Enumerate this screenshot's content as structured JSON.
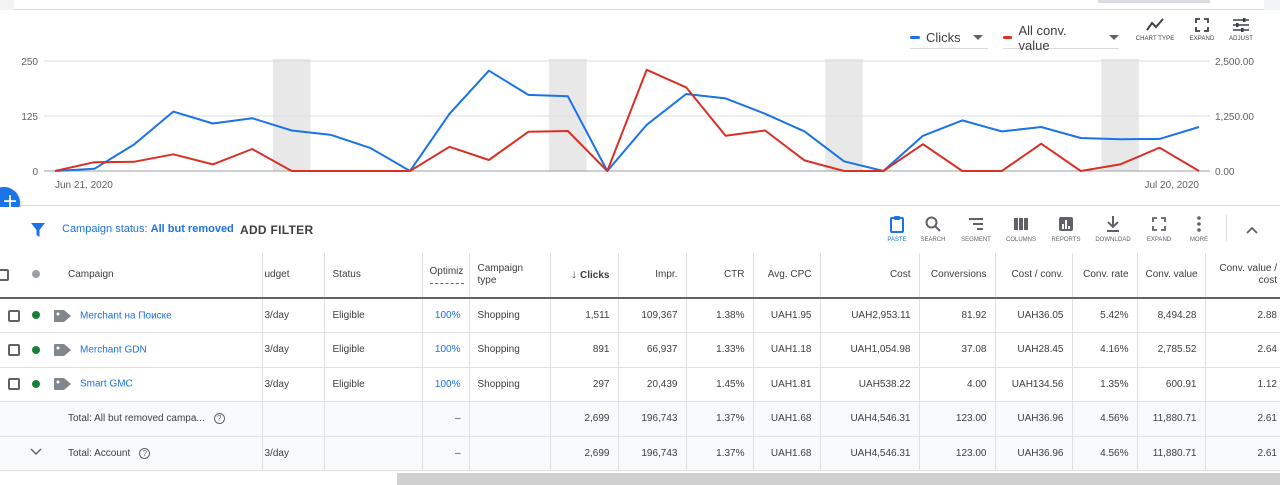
{
  "chart": {
    "metrics": [
      {
        "label": "Clicks",
        "color": "#1a73e8"
      },
      {
        "label": "All conv. value",
        "color": "#d93025"
      }
    ],
    "tools": [
      {
        "label": "CHART TYPE",
        "icon": "line-chart-icon"
      },
      {
        "label": "EXPAND",
        "icon": "expand-icon"
      },
      {
        "label": "ADJUST",
        "icon": "adjust-icon"
      }
    ],
    "left_ticks": [
      "250",
      "125",
      "0"
    ],
    "right_ticks": [
      "2,500.00",
      "1,250.00",
      "0.00"
    ],
    "date_start": "Jun 21, 2020",
    "date_end": "Jul 20, 2020"
  },
  "chart_data": {
    "type": "line",
    "x": [
      "Jun 21, 2020",
      "Jun 22",
      "Jun 23",
      "Jun 24",
      "Jun 25",
      "Jun 26",
      "Jun 27",
      "Jun 28",
      "Jun 29",
      "Jun 30",
      "Jul 1",
      "Jul 2",
      "Jul 3",
      "Jul 4",
      "Jul 5",
      "Jul 6",
      "Jul 7",
      "Jul 8",
      "Jul 9",
      "Jul 10",
      "Jul 11",
      "Jul 12",
      "Jul 13",
      "Jul 14",
      "Jul 15",
      "Jul 16",
      "Jul 17",
      "Jul 18",
      "Jul 19",
      "Jul 20, 2020"
    ],
    "series": [
      {
        "name": "Clicks",
        "axis": "left",
        "values": [
          0,
          5,
          60,
          135,
          108,
          120,
          92,
          82,
          52,
          0,
          130,
          228,
          173,
          170,
          0,
          105,
          175,
          165,
          130,
          90,
          22,
          0,
          80,
          115,
          90,
          100,
          75,
          72,
          73,
          100
        ]
      },
      {
        "name": "All conv. value",
        "axis": "right",
        "values": [
          0,
          200,
          210,
          380,
          150,
          500,
          0,
          0,
          0,
          0,
          550,
          250,
          890,
          910,
          0,
          2300,
          1900,
          800,
          920,
          240,
          0,
          0,
          610,
          0,
          0,
          620,
          0,
          150,
          530,
          0
        ]
      }
    ],
    "ylim_left": [
      0,
      250
    ],
    "ylim_right": [
      0,
      2500
    ],
    "weekend_shaded_indices": [
      6,
      13,
      20,
      27
    ]
  },
  "filter": {
    "prefix": "Campaign status: ",
    "value": "All but removed",
    "add_filter": "ADD FILTER"
  },
  "table_tools": [
    {
      "label": "PASTE",
      "icon": "paste-icon",
      "active": true
    },
    {
      "label": "SEARCH",
      "icon": "search-icon"
    },
    {
      "label": "SEGMENT",
      "icon": "segment-icon"
    },
    {
      "label": "COLUMNS",
      "icon": "columns-icon"
    },
    {
      "label": "REPORTS",
      "icon": "reports-icon"
    },
    {
      "label": "DOWNLOAD",
      "icon": "download-icon"
    },
    {
      "label": "EXPAND",
      "icon": "expand-icon"
    },
    {
      "label": "MORE",
      "icon": "more-icon"
    }
  ],
  "table": {
    "headers": {
      "campaign": "Campaign",
      "budget": "udget",
      "status": "Status",
      "optim": "Optimiz",
      "type": "Campaign type",
      "clicks": "Clicks",
      "impr": "Impr.",
      "ctr": "CTR",
      "avg_cpc": "Avg. CPC",
      "cost": "Cost",
      "conversions": "Conversions",
      "cost_conv": "Cost / conv.",
      "conv_rate": "Conv. rate",
      "conv_value": "Conv. value",
      "conv_value_cost": "Conv. value / cost"
    },
    "rows": [
      {
        "campaign": "Merchant на Поиске",
        "budget": "3/day",
        "status": "Eligible",
        "optim": "100%",
        "type": "Shopping",
        "clicks": "1,511",
        "impr": "109,367",
        "ctr": "1.38%",
        "avg_cpc": "UAH1.95",
        "cost": "UAH2,953.11",
        "conversions": "81.92",
        "cost_conv": "UAH36.05",
        "conv_rate": "5.42%",
        "conv_value": "8,494.28",
        "conv_value_cost": "2.88"
      },
      {
        "campaign": "Merchant GDN",
        "budget": "3/day",
        "status": "Eligible",
        "optim": "100%",
        "type": "Shopping",
        "clicks": "891",
        "impr": "66,937",
        "ctr": "1.33%",
        "avg_cpc": "UAH1.18",
        "cost": "UAH1,054.98",
        "conversions": "37.08",
        "cost_conv": "UAH28.45",
        "conv_rate": "4.16%",
        "conv_value": "2,785.52",
        "conv_value_cost": "2.64"
      },
      {
        "campaign": "Smart GMC",
        "budget": "3/day",
        "status": "Eligible",
        "optim": "100%",
        "type": "Shopping",
        "clicks": "297",
        "impr": "20,439",
        "ctr": "1.45%",
        "avg_cpc": "UAH1.81",
        "cost": "UAH538.22",
        "conversions": "4.00",
        "cost_conv": "UAH134.56",
        "conv_rate": "1.35%",
        "conv_value": "600.91",
        "conv_value_cost": "1.12"
      }
    ],
    "totals": [
      {
        "label": "Total: All but removed campa...",
        "budget": "",
        "optim": "–",
        "clicks": "2,699",
        "impr": "196,743",
        "ctr": "1.37%",
        "avg_cpc": "UAH1.68",
        "cost": "UAH4,546.31",
        "conversions": "123.00",
        "cost_conv": "UAH36.96",
        "conv_rate": "4.56%",
        "conv_value": "11,880.71",
        "conv_value_cost": "2.61"
      },
      {
        "label": "Total: Account",
        "budget": "3/day",
        "optim": "–",
        "clicks": "2,699",
        "impr": "196,743",
        "ctr": "1.37%",
        "avg_cpc": "UAH1.68",
        "cost": "UAH4,546.31",
        "conversions": "123.00",
        "cost_conv": "UAH36.96",
        "conv_rate": "4.56%",
        "conv_value": "11,880.71",
        "conv_value_cost": "2.61"
      }
    ]
  }
}
